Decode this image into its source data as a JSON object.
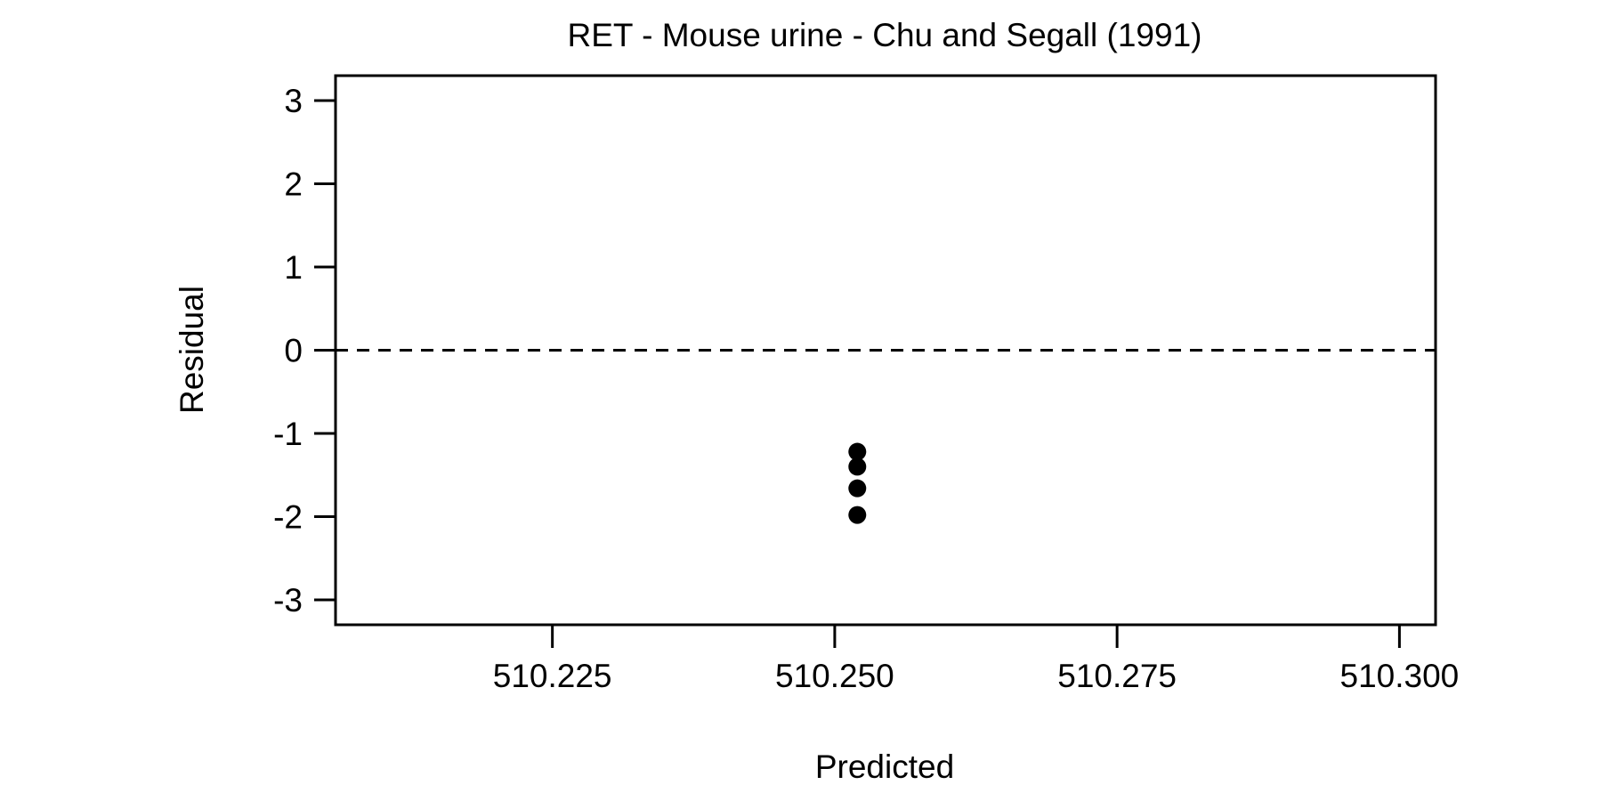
{
  "chart_data": {
    "type": "scatter",
    "title": "RET - Mouse urine - Chu and Segall (1991)",
    "xlabel": "Predicted",
    "ylabel": "Residual",
    "xlim": [
      510.2058,
      510.3032
    ],
    "ylim": [
      -3.3,
      3.3
    ],
    "x_ticks": [
      510.225,
      510.25,
      510.275,
      510.3
    ],
    "x_tick_labels": [
      "510.225",
      "510.250",
      "510.275",
      "510.300"
    ],
    "y_ticks": [
      3,
      2,
      1,
      0,
      -1,
      -2,
      -3
    ],
    "y_tick_labels": [
      "3",
      "2",
      "1",
      "0",
      "-1",
      "-2",
      "-3"
    ],
    "reference_line": {
      "y": 0,
      "style": "dashed"
    },
    "grid": false,
    "series": [
      {
        "points": [
          {
            "x": 510.252,
            "y": -1.22
          },
          {
            "x": 510.252,
            "y": -1.4
          },
          {
            "x": 510.252,
            "y": -1.66
          },
          {
            "x": 510.252,
            "y": -1.98
          }
        ],
        "color": "#000000"
      }
    ]
  }
}
